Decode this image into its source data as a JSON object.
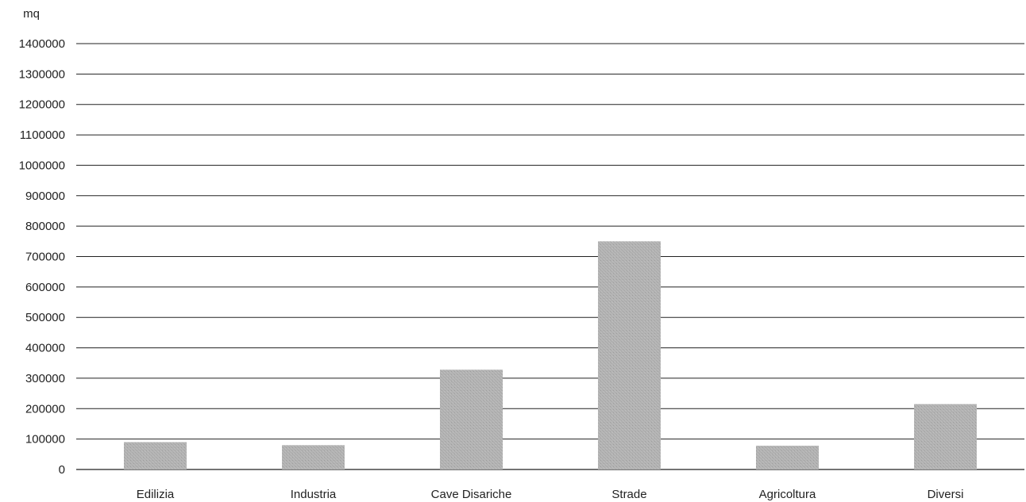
{
  "chart_data": {
    "type": "bar",
    "ylabel": "mq",
    "categories": [
      "Edilizia",
      "Industria",
      "Cave Disariche",
      "Strade",
      "Agricoltura",
      "Diversi"
    ],
    "values": [
      90000,
      80000,
      328000,
      750000,
      78000,
      215000
    ],
    "ylim": [
      0,
      1400000
    ],
    "yticks": [
      0,
      100000,
      200000,
      300000,
      400000,
      500000,
      600000,
      700000,
      800000,
      900000,
      1000000,
      1100000,
      1200000,
      1300000,
      1400000
    ],
    "ytick_labels": [
      "0",
      "100000",
      "200000",
      "300000",
      "400000",
      "500000",
      "600000",
      "700000",
      "800000",
      "900000",
      "1000000",
      "1100000",
      "1200000",
      "1300000",
      "1400000"
    ],
    "grid": true,
    "legend": "none",
    "bar_color": "#b3b3b3",
    "grid_color": "#222222"
  }
}
